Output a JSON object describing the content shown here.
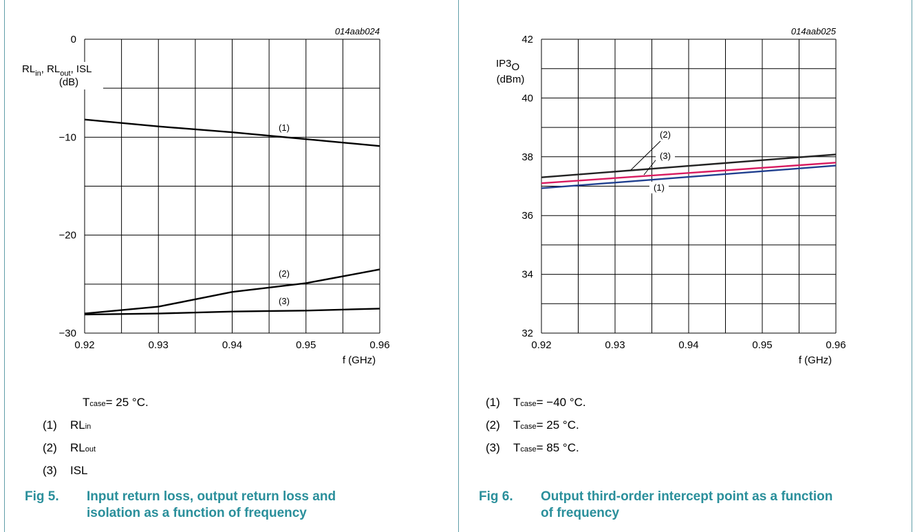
{
  "charts": [
    {
      "id": "fig5",
      "code": "014aab024",
      "ylabel_line1": "RL",
      "ylabel_sub1": "in",
      "ylabel_sep1": ", RL",
      "ylabel_sub2": "out",
      "ylabel_tail": ", ISL",
      "ylabel_line2": "(dB)",
      "xlabel": "f (GHz)",
      "condition_prefix": "T",
      "condition_sub": "case",
      "condition_text": " = 25 °C.",
      "legend": [
        {
          "num": "(1)",
          "main": "RL",
          "sub": "in",
          "tail": ""
        },
        {
          "num": "(2)",
          "main": "RL",
          "sub": "out",
          "tail": ""
        },
        {
          "num": "(3)",
          "main": "ISL",
          "sub": "",
          "tail": ""
        }
      ],
      "caption_fig": "Fig 5.",
      "caption_title_1": "Input return loss, output return loss and",
      "caption_title_2": "isolation as a function of frequency"
    },
    {
      "id": "fig6",
      "code": "014aab025",
      "ylabel_line1": "IP3",
      "ylabel_sub1": "O",
      "ylabel_line2": "(dBm)",
      "xlabel": "f (GHz)",
      "legend": [
        {
          "num": "(1)",
          "main": "T",
          "sub": "case",
          "tail": " = −40 °C."
        },
        {
          "num": "(2)",
          "main": "T",
          "sub": "case",
          "tail": " = 25 °C."
        },
        {
          "num": "(3)",
          "main": "T",
          "sub": "case",
          "tail": " = 85 °C."
        }
      ],
      "caption_fig": "Fig 6.",
      "caption_title_1": "Output third-order intercept point as a function",
      "caption_title_2": "of frequency"
    }
  ],
  "chart_data": [
    {
      "type": "line",
      "xlim": [
        0.92,
        0.96
      ],
      "ylim": [
        -30,
        0
      ],
      "xticks": [
        "0.92",
        "0.93",
        "0.94",
        "0.95",
        "0.96"
      ],
      "yticks": [
        "0",
        "−10",
        "−20",
        "−30"
      ],
      "ytick_values": [
        0,
        -10,
        -20,
        -30
      ],
      "xtick_values": [
        0.92,
        0.93,
        0.94,
        0.95,
        0.96
      ],
      "grid": true,
      "series": [
        {
          "label": "(1)",
          "color": "#000000",
          "x": [
            0.92,
            0.93,
            0.94,
            0.95,
            0.96
          ],
          "y": [
            -8.2,
            -8.9,
            -9.5,
            -10.2,
            -10.9
          ]
        },
        {
          "label": "(2)",
          "color": "#000000",
          "x": [
            0.92,
            0.93,
            0.94,
            0.95,
            0.96
          ],
          "y": [
            -28.0,
            -27.3,
            -25.8,
            -24.9,
            -23.5
          ]
        },
        {
          "label": "(3)",
          "color": "#000000",
          "x": [
            0.92,
            0.93,
            0.94,
            0.95,
            0.96
          ],
          "y": [
            -28.1,
            -28.0,
            -27.8,
            -27.7,
            -27.5
          ]
        }
      ]
    },
    {
      "type": "line",
      "xlim": [
        0.92,
        0.96
      ],
      "ylim": [
        32,
        42
      ],
      "xticks": [
        "0.92",
        "0.93",
        "0.94",
        "0.95",
        "0.96"
      ],
      "yticks": [
        "42",
        "40",
        "38",
        "36",
        "34",
        "32"
      ],
      "ytick_values": [
        42,
        40,
        38,
        36,
        34,
        32
      ],
      "xtick_values": [
        0.92,
        0.93,
        0.94,
        0.95,
        0.96
      ],
      "grid": true,
      "series": [
        {
          "label": "(1)",
          "color": "#1f3f8f",
          "x": [
            0.92,
            0.96
          ],
          "y": [
            36.93,
            37.7
          ]
        },
        {
          "label": "(2)",
          "color": "#222222",
          "x": [
            0.92,
            0.96
          ],
          "y": [
            37.3,
            38.08
          ]
        },
        {
          "label": "(3)",
          "color": "#d81b60",
          "x": [
            0.92,
            0.96
          ],
          "y": [
            37.1,
            37.8
          ]
        }
      ]
    }
  ]
}
